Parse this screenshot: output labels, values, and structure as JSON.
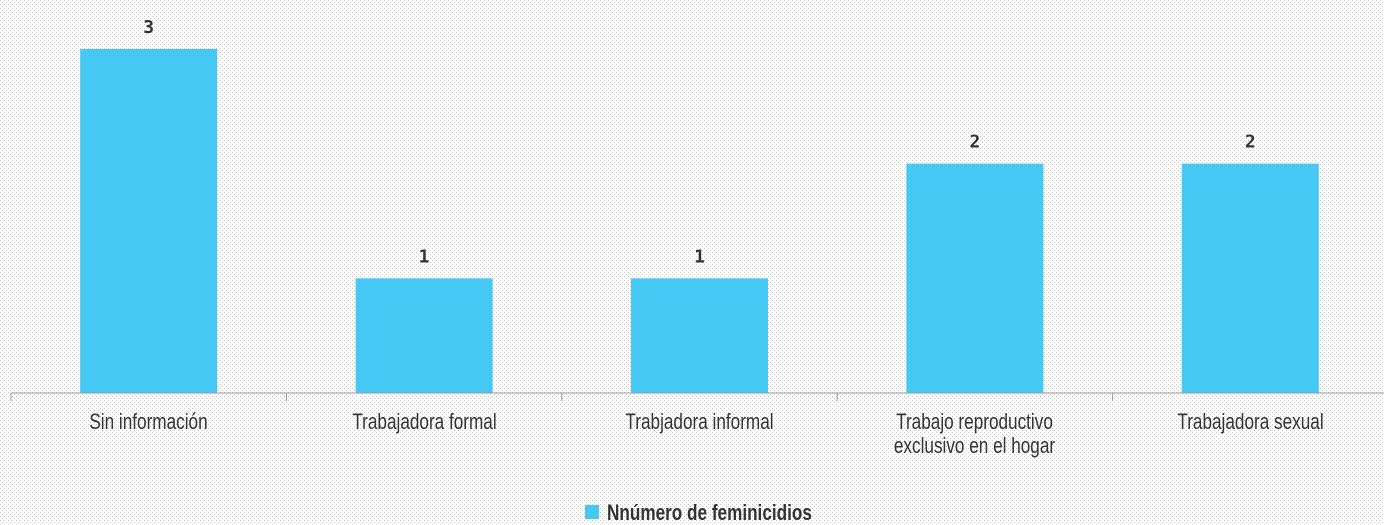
{
  "chart_data": {
    "type": "bar",
    "categories": [
      "Sin información",
      "Trabajadora formal",
      "Trabjadora informal",
      "Trabajo reproductivo exclusivo en el hogar",
      "Trabajadora sexual"
    ],
    "series": [
      {
        "name": "Nnúmero de feminicidios",
        "color": "#46c8f4",
        "values": [
          3,
          1,
          1,
          2,
          2
        ]
      }
    ],
    "ylim": [
      0,
      3
    ],
    "legend": "bottom"
  }
}
